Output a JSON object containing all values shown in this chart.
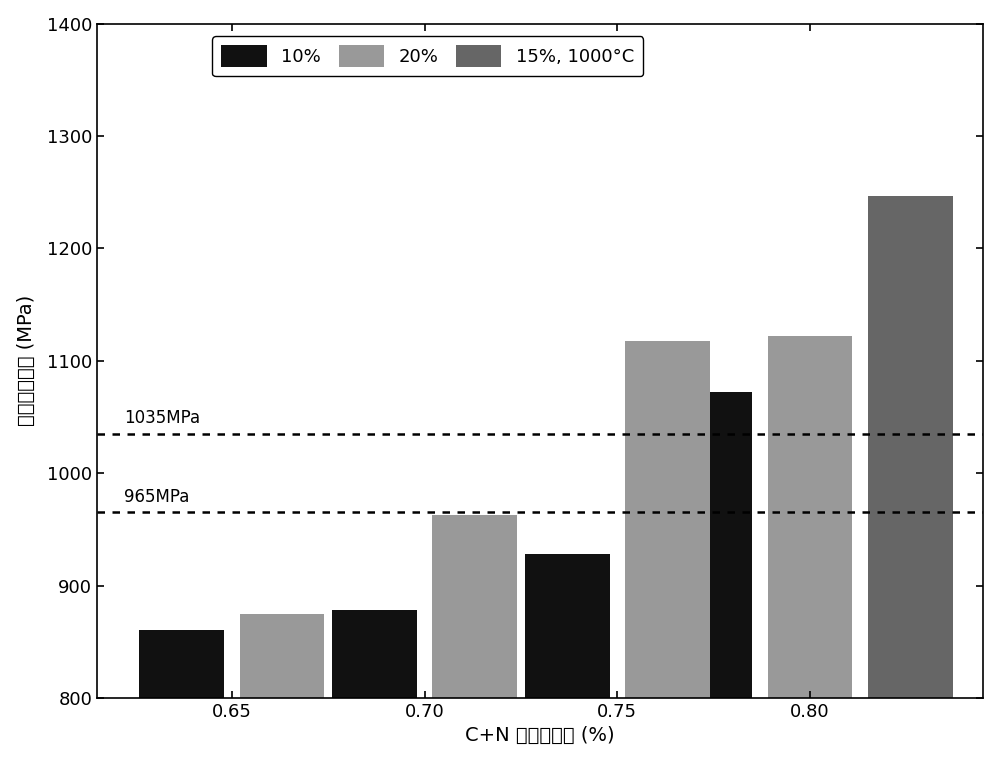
{
  "categories": [
    0.65,
    0.7,
    0.75,
    0.8
  ],
  "series": [
    {
      "name": "10%",
      "values": [
        860,
        878,
        928,
        1072
      ],
      "color": "#111111"
    },
    {
      "name": "20%",
      "values": [
        875,
        963,
        1118,
        1122
      ],
      "color": "#999999"
    },
    {
      "name": "15%, 1000°C",
      "values": [
        null,
        null,
        null,
        1247
      ],
      "color": "#666666"
    }
  ],
  "hlines": [
    {
      "y": 1035,
      "label": "1035MPa"
    },
    {
      "y": 965,
      "label": "965MPa"
    }
  ],
  "ylim": [
    800,
    1400
  ],
  "yticks": [
    800,
    900,
    1000,
    1100,
    1200,
    1300,
    1400
  ],
  "xlabel": "C+N 质量百分比 (%)",
  "ylabel": "室温屈服强度 (MPa)",
  "background_color": "#ffffff",
  "bar_width": 0.022,
  "bar_gap": 0.004,
  "legend_labels": [
    "10%",
    "20%",
    "15%, 1000°C"
  ],
  "legend_colors": [
    "#111111",
    "#999999",
    "#666666"
  ],
  "xlim": [
    0.615,
    0.845
  ]
}
